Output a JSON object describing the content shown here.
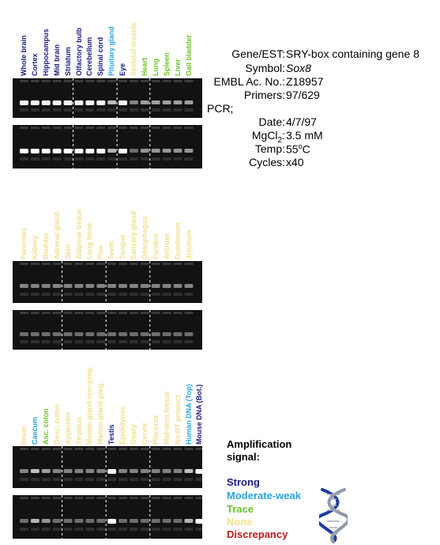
{
  "colors": {
    "strong": "#1a1a80",
    "moderate": "#2aa3dc",
    "trace": "#6cc328",
    "none": "#f2df8c",
    "discrepancy": "#b81c1c",
    "gel": "#121212"
  },
  "panels": [
    {
      "lanes": [
        {
          "name": "Whole brain",
          "level": "strong"
        },
        {
          "name": "Cortex",
          "level": "strong"
        },
        {
          "name": "Hippocampus",
          "level": "strong"
        },
        {
          "name": "Mid brain",
          "level": "strong"
        },
        {
          "name": "Striatum",
          "level": "strong"
        },
        {
          "name": "Olfactory bulb",
          "level": "strong"
        },
        {
          "name": "Cerebellum",
          "level": "strong"
        },
        {
          "name": "Spinal cord",
          "level": "strong"
        },
        {
          "name": "Pituitary gland",
          "level": "moderate"
        },
        {
          "name": "Eye",
          "level": "strong"
        },
        {
          "name": "Skeletal muscle",
          "level": "none"
        },
        {
          "name": "Heart",
          "level": "trace"
        },
        {
          "name": "Lung",
          "level": "trace"
        },
        {
          "name": "Spleen",
          "level": "trace"
        },
        {
          "name": "Liver",
          "level": "trace"
        },
        {
          "name": "Gall bladder",
          "level": "trace"
        }
      ]
    },
    {
      "lanes": [
        {
          "name": "Pancreas",
          "level": "none"
        },
        {
          "name": "Kidney",
          "level": "none"
        },
        {
          "name": "Bladder",
          "level": "none"
        },
        {
          "name": "Adrenal gland",
          "level": "none"
        },
        {
          "name": "Skin",
          "level": "none"
        },
        {
          "name": "Adipose tissue",
          "level": "none"
        },
        {
          "name": "Long bone",
          "level": "none"
        },
        {
          "name": "Paw",
          "level": "none"
        },
        {
          "name": "Teeth",
          "level": "none"
        },
        {
          "name": "Tongue",
          "level": "none"
        },
        {
          "name": "Salivary gland",
          "level": "none"
        },
        {
          "name": "Oesophagus",
          "level": "none"
        },
        {
          "name": "Fundus",
          "level": "none"
        },
        {
          "name": "Antrum",
          "level": "none"
        },
        {
          "name": "Duodenum",
          "level": "none"
        },
        {
          "name": "Jejunum",
          "level": "none"
        }
      ]
    },
    {
      "lanes": [
        {
          "name": "Ileum",
          "level": "none"
        },
        {
          "name": "Caecum",
          "level": "moderate"
        },
        {
          "name": "Asc. colon",
          "level": "trace"
        },
        {
          "name": "Desc. colon",
          "level": "none"
        },
        {
          "name": "Appendix",
          "level": "none"
        },
        {
          "name": "Thymus",
          "level": "none"
        },
        {
          "name": "Mamm.gland non-preg.",
          "level": "none"
        },
        {
          "name": "Mamm.gland preg.",
          "level": "none"
        },
        {
          "name": "Testis",
          "level": "strong"
        },
        {
          "name": "Epididymis",
          "level": "none"
        },
        {
          "name": "Ovary",
          "level": "none"
        },
        {
          "name": "Cervix",
          "level": "none"
        },
        {
          "name": "Placenta",
          "level": "none"
        },
        {
          "name": "Mid-term foetus",
          "level": "none"
        },
        {
          "name": "No RT product",
          "level": "none"
        },
        {
          "name": "Human DNA (Top)",
          "level": "moderate"
        },
        {
          "name": "Mouse DNA (Bot.)",
          "level": "strong"
        }
      ]
    }
  ],
  "info": {
    "gene_label": "Gene/EST:",
    "gene_value": "SRY-box containing gene 8",
    "symbol_label": "Symbol:",
    "symbol_value": "Sox8",
    "embl_label": "EMBL Ac. No.:",
    "embl_value": "Z18957",
    "primers_label": "Primers:",
    "primers_value": "97/629",
    "pcr_label": "PCR;",
    "date_label": "Date:",
    "date_value": "4/7/97",
    "mgcl_label_main": "MgCl",
    "mgcl_label_sub": "2",
    "mgcl_label_end": ":",
    "mgcl_value": "3.5 mM",
    "temp_label": "Temp:",
    "temp_value_num": "55",
    "temp_value_sup": "o",
    "temp_value_unit": "C",
    "cycles_label": "Cycles:",
    "cycles_value": "x40"
  },
  "legend": {
    "title_line1": "Amplification",
    "title_line2": "signal:",
    "items": [
      {
        "label": "Strong",
        "level": "strong"
      },
      {
        "label": "Moderate-weak",
        "level": "moderate"
      },
      {
        "label": "Trace",
        "level": "trace"
      },
      {
        "label": "None",
        "level": "none"
      },
      {
        "label": "Discrepancy",
        "level": "discrepancy"
      }
    ],
    "icon": "dna-helix-icon"
  }
}
